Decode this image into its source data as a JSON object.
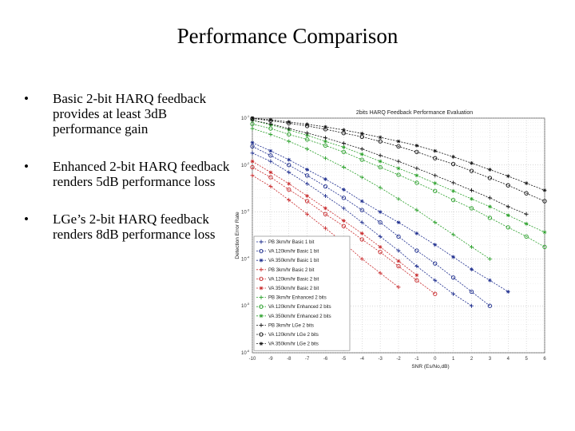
{
  "slide": {
    "title": "Performance Comparison",
    "bullets": [
      "Basic 2-bit HARQ feedback provides at least 3dB performance gain",
      "Enhanced 2-bit HARQ feedback renders 5dB performance loss",
      "LGe’s 2-bit HARQ feedback renders 8dB performance loss"
    ]
  },
  "chart_data": {
    "type": "line",
    "title": "2bits HARQ Feedback Performance Evaluation",
    "xlabel": "SNR (Es/No,dB)",
    "ylabel": "Detection Error Rate",
    "x_ticks": [
      "-10",
      "-9",
      "-8",
      "-7",
      "-6",
      "-5",
      "-4",
      "-3",
      "-2",
      "-1",
      "0",
      "1",
      "2",
      "3",
      "4",
      "5",
      "6"
    ],
    "y_ticks": [
      {
        "base": "10",
        "exp": "-1"
      },
      {
        "base": "10",
        "exp": "-2"
      },
      {
        "base": "10",
        "exp": "-3"
      },
      {
        "base": "10",
        "exp": "-4"
      },
      {
        "base": "10",
        "exp": "-5"
      },
      {
        "base": "10",
        "exp": "-6"
      }
    ],
    "xlim": [
      -10,
      6
    ],
    "ylim_log10": [
      -6,
      -1
    ],
    "grid": true,
    "legend_position": "bottom-left",
    "series": [
      {
        "name": "PB 3km/hr Basic 1 bit",
        "color": "#1a2a8c",
        "marker": "+",
        "x": [
          -10,
          -9,
          -8,
          -7,
          -6,
          -5,
          -4,
          -3,
          -2,
          -1,
          0,
          1,
          2
        ],
        "y": [
          0.018,
          0.012,
          0.007,
          0.004,
          0.0022,
          0.0012,
          0.0006,
          0.0003,
          0.00015,
          7e-05,
          3.5e-05,
          1.8e-05,
          1e-05
        ]
      },
      {
        "name": "VA 120km/hr Basic 1 bit",
        "color": "#1a2a8c",
        "marker": "o",
        "x": [
          -10,
          -9,
          -8,
          -7,
          -6,
          -5,
          -4,
          -3,
          -2,
          -1,
          0,
          1,
          2,
          3
        ],
        "y": [
          0.025,
          0.016,
          0.01,
          0.006,
          0.0035,
          0.002,
          0.0011,
          0.0006,
          0.0003,
          0.00015,
          8e-05,
          4e-05,
          2e-05,
          1e-05
        ]
      },
      {
        "name": "VA 350km/hr Basic 1 bit",
        "color": "#1a2a8c",
        "marker": "*",
        "x": [
          -10,
          -9,
          -8,
          -7,
          -6,
          -5,
          -4,
          -3,
          -2,
          -1,
          0,
          1,
          2,
          3,
          4
        ],
        "y": [
          0.03,
          0.02,
          0.013,
          0.008,
          0.005,
          0.003,
          0.0017,
          0.001,
          0.0006,
          0.00035,
          0.0002,
          0.00011,
          6e-05,
          3.5e-05,
          2e-05
        ]
      },
      {
        "name": "PB 3km/hr Basic 2 bit",
        "color": "#c8282a",
        "marker": "+",
        "x": [
          -10,
          -9,
          -8,
          -7,
          -6,
          -5,
          -4,
          -3,
          -2
        ],
        "y": [
          0.006,
          0.0035,
          0.0018,
          0.0009,
          0.00045,
          0.00022,
          0.0001,
          5e-05,
          2.5e-05
        ]
      },
      {
        "name": "VA 120km/hr Basic 2 bit",
        "color": "#c8282a",
        "marker": "o",
        "x": [
          -10,
          -9,
          -8,
          -7,
          -6,
          -5,
          -4,
          -3,
          -2,
          -1,
          0
        ],
        "y": [
          0.009,
          0.0055,
          0.003,
          0.0017,
          0.0009,
          0.0005,
          0.00026,
          0.00014,
          7e-05,
          3.5e-05,
          1.8e-05
        ]
      },
      {
        "name": "VA 350km/hr Basic 2 bit",
        "color": "#c8282a",
        "marker": "*",
        "x": [
          -10,
          -9,
          -8,
          -7,
          -6,
          -5,
          -4,
          -3,
          -2,
          -1
        ],
        "y": [
          0.012,
          0.007,
          0.004,
          0.0022,
          0.0012,
          0.00065,
          0.00035,
          0.00018,
          9e-05,
          4.5e-05
        ]
      },
      {
        "name": "PB 3km/hr Enhanced 2 bits",
        "color": "#2aa02a",
        "marker": "+",
        "x": [
          -10,
          -9,
          -8,
          -7,
          -6,
          -5,
          -4,
          -3,
          -2,
          -1,
          0,
          1,
          2,
          3
        ],
        "y": [
          0.06,
          0.045,
          0.032,
          0.022,
          0.014,
          0.009,
          0.0055,
          0.0033,
          0.0019,
          0.0011,
          0.0006,
          0.00033,
          0.00018,
          0.0001
        ]
      },
      {
        "name": "VA 120km/hr Enhanced 2 bits",
        "color": "#2aa02a",
        "marker": "o",
        "x": [
          -10,
          -9,
          -8,
          -7,
          -6,
          -5,
          -4,
          -3,
          -2,
          -1,
          0,
          1,
          2,
          3,
          4,
          5,
          6
        ],
        "y": [
          0.075,
          0.06,
          0.045,
          0.035,
          0.026,
          0.019,
          0.013,
          0.009,
          0.0062,
          0.0042,
          0.0028,
          0.0018,
          0.0012,
          0.00075,
          0.00047,
          0.0003,
          0.00018
        ]
      },
      {
        "name": "VA 350km/hr Enhanced 2 bits",
        "color": "#2aa02a",
        "marker": "*",
        "x": [
          -10,
          -9,
          -8,
          -7,
          -6,
          -5,
          -4,
          -3,
          -2,
          -1,
          0,
          1,
          2,
          3,
          4,
          5,
          6
        ],
        "y": [
          0.09,
          0.072,
          0.056,
          0.043,
          0.032,
          0.024,
          0.017,
          0.012,
          0.0085,
          0.006,
          0.0041,
          0.0028,
          0.0019,
          0.0013,
          0.00085,
          0.00056,
          0.00037
        ]
      },
      {
        "name": "PB 3km/hr LGe 2 bits",
        "color": "#111111",
        "marker": "+",
        "x": [
          -10,
          -9,
          -8,
          -7,
          -6,
          -5,
          -4,
          -3,
          -2,
          -1,
          0,
          1,
          2,
          3,
          4,
          5
        ],
        "y": [
          0.09,
          0.075,
          0.06,
          0.048,
          0.038,
          0.029,
          0.022,
          0.016,
          0.012,
          0.0085,
          0.006,
          0.0042,
          0.0029,
          0.002,
          0.0013,
          0.0009
        ]
      },
      {
        "name": "VA 120km/hr LGe 2 bits",
        "color": "#111111",
        "marker": "o",
        "x": [
          -10,
          -9,
          -8,
          -7,
          -6,
          -5,
          -4,
          -3,
          -2,
          -1,
          0,
          1,
          2,
          3,
          4,
          5,
          6
        ],
        "y": [
          0.098,
          0.088,
          0.078,
          0.068,
          0.058,
          0.048,
          0.04,
          0.032,
          0.025,
          0.019,
          0.014,
          0.0105,
          0.0075,
          0.0053,
          0.0037,
          0.0025,
          0.0017
        ]
      },
      {
        "name": "VA 350km/hr LGe 2 bits",
        "color": "#111111",
        "marker": "*",
        "x": [
          -10,
          -9,
          -8,
          -7,
          -6,
          -5,
          -4,
          -3,
          -2,
          -1,
          0,
          1,
          2,
          3,
          4,
          5,
          6
        ],
        "y": [
          0.1,
          0.092,
          0.083,
          0.074,
          0.065,
          0.056,
          0.047,
          0.039,
          0.032,
          0.026,
          0.02,
          0.015,
          0.011,
          0.008,
          0.0058,
          0.0041,
          0.0029
        ]
      }
    ]
  }
}
